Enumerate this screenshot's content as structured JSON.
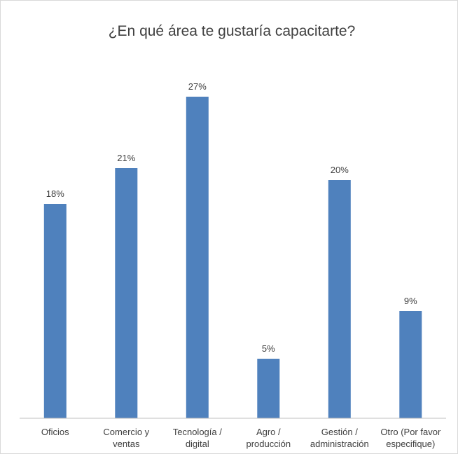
{
  "chart_data": {
    "type": "bar",
    "title": "¿En qué área te gustaría capacitarte?",
    "xlabel": "",
    "ylabel": "",
    "categories": [
      [
        "Oficios"
      ],
      [
        "Comercio y",
        "ventas"
      ],
      [
        "Tecnología /",
        "digital"
      ],
      [
        "Agro /",
        "producción"
      ],
      [
        "Gestión /",
        "administración"
      ],
      [
        "Otro (Por favor",
        "especifique)"
      ]
    ],
    "values": [
      18,
      21,
      27,
      5,
      20,
      9
    ],
    "data_labels": [
      "18%",
      "21%",
      "27%",
      "5%",
      "20%",
      "9%"
    ],
    "value_unit": "%",
    "ylim": [
      0,
      30
    ],
    "grid": false,
    "legend": "none",
    "bar_color": "#4f81bd",
    "axis_color": "#bfbfbf",
    "text_color": "#404040"
  }
}
